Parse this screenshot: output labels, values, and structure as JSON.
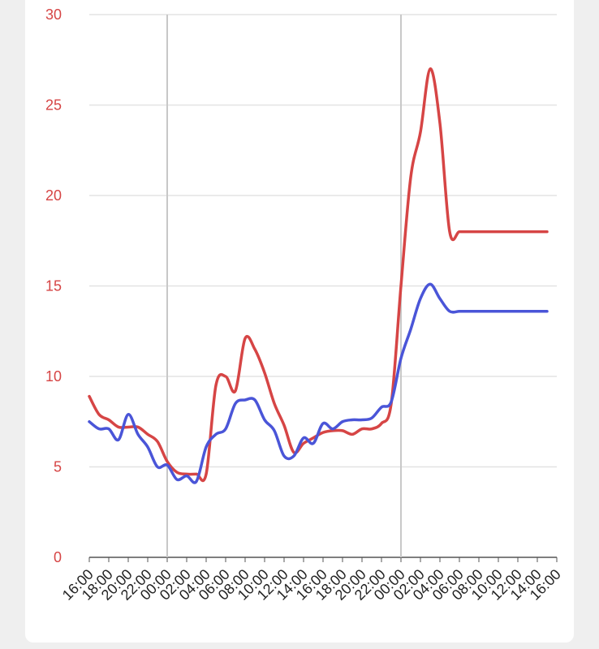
{
  "chart_data": {
    "type": "line",
    "title": "",
    "xlabel": "",
    "ylabel": "",
    "ylim": [
      0,
      30
    ],
    "yticks": [
      0,
      5,
      10,
      15,
      20,
      25,
      30
    ],
    "categories": [
      "16:00",
      "18:00",
      "20:00",
      "22:00",
      "00:00",
      "02:00",
      "04:00",
      "06:00",
      "08:00",
      "10:00",
      "12:00",
      "14:00",
      "16:00",
      "18:00",
      "20:00",
      "22:00",
      "00:00",
      "02:00",
      "04:00",
      "06:00",
      "08:00",
      "10:00",
      "12:00",
      "14:00",
      "16:00"
    ],
    "grid": true,
    "legend": "none",
    "series": [
      {
        "color": "#d64545",
        "x": [
          0,
          0.5,
          1,
          1.5,
          2,
          2.5,
          3,
          3.5,
          4,
          4.5,
          5,
          5.5,
          6,
          6.5,
          7,
          7.5,
          8,
          8.5,
          9,
          9.5,
          10,
          10.5,
          11,
          11.5,
          12,
          12.5,
          13,
          13.5,
          14,
          14.5,
          15,
          15.5,
          16,
          16.5,
          17,
          17.5,
          18,
          18.5,
          19,
          19.5,
          20,
          20.5,
          21,
          21.5,
          22,
          22.5,
          23,
          23.5,
          24
        ],
        "values": [
          8.9,
          7.9,
          7.6,
          7.2,
          7.2,
          7.2,
          6.8,
          6.4,
          5.3,
          4.7,
          4.6,
          4.6,
          4.6,
          9.5,
          10.0,
          9.2,
          12.1,
          11.5,
          10.2,
          8.5,
          7.3,
          5.8,
          6.3,
          6.6,
          6.9,
          7.0,
          7.0,
          6.8,
          7.1,
          7.1,
          7.4,
          8.5,
          15.0,
          21.0,
          23.5,
          27.0,
          24.0,
          18.0,
          18.0,
          18.0,
          18.0,
          18.0,
          18.0,
          18.0,
          18.0,
          18.0,
          18.0,
          18.0,
          18.0
        ]
      },
      {
        "color": "#4a55d8",
        "x": [
          0,
          0.5,
          1,
          1.5,
          2,
          2.5,
          3,
          3.5,
          4,
          4.5,
          5,
          5.5,
          6,
          6.5,
          7,
          7.5,
          8,
          8.5,
          9,
          9.5,
          10,
          10.5,
          11,
          11.5,
          12,
          12.5,
          13,
          13.5,
          14,
          14.5,
          15,
          15.5,
          16,
          16.5,
          17,
          17.5,
          18,
          18.5,
          19,
          19.5,
          20,
          20.5,
          21,
          21.5,
          22,
          22.5,
          23,
          23.5,
          24
        ],
        "values": [
          7.5,
          7.1,
          7.1,
          6.5,
          7.9,
          6.8,
          6.1,
          5.0,
          5.1,
          4.3,
          4.5,
          4.2,
          6.1,
          6.8,
          7.1,
          8.5,
          8.7,
          8.7,
          7.6,
          7.0,
          5.6,
          5.6,
          6.6,
          6.3,
          7.4,
          7.1,
          7.5,
          7.6,
          7.6,
          7.7,
          8.3,
          8.6,
          11.0,
          12.6,
          14.3,
          15.1,
          14.3,
          13.6,
          13.6,
          13.6,
          13.6,
          13.6,
          13.6,
          13.6,
          13.6,
          13.6,
          13.6,
          13.6,
          13.6
        ]
      }
    ]
  }
}
